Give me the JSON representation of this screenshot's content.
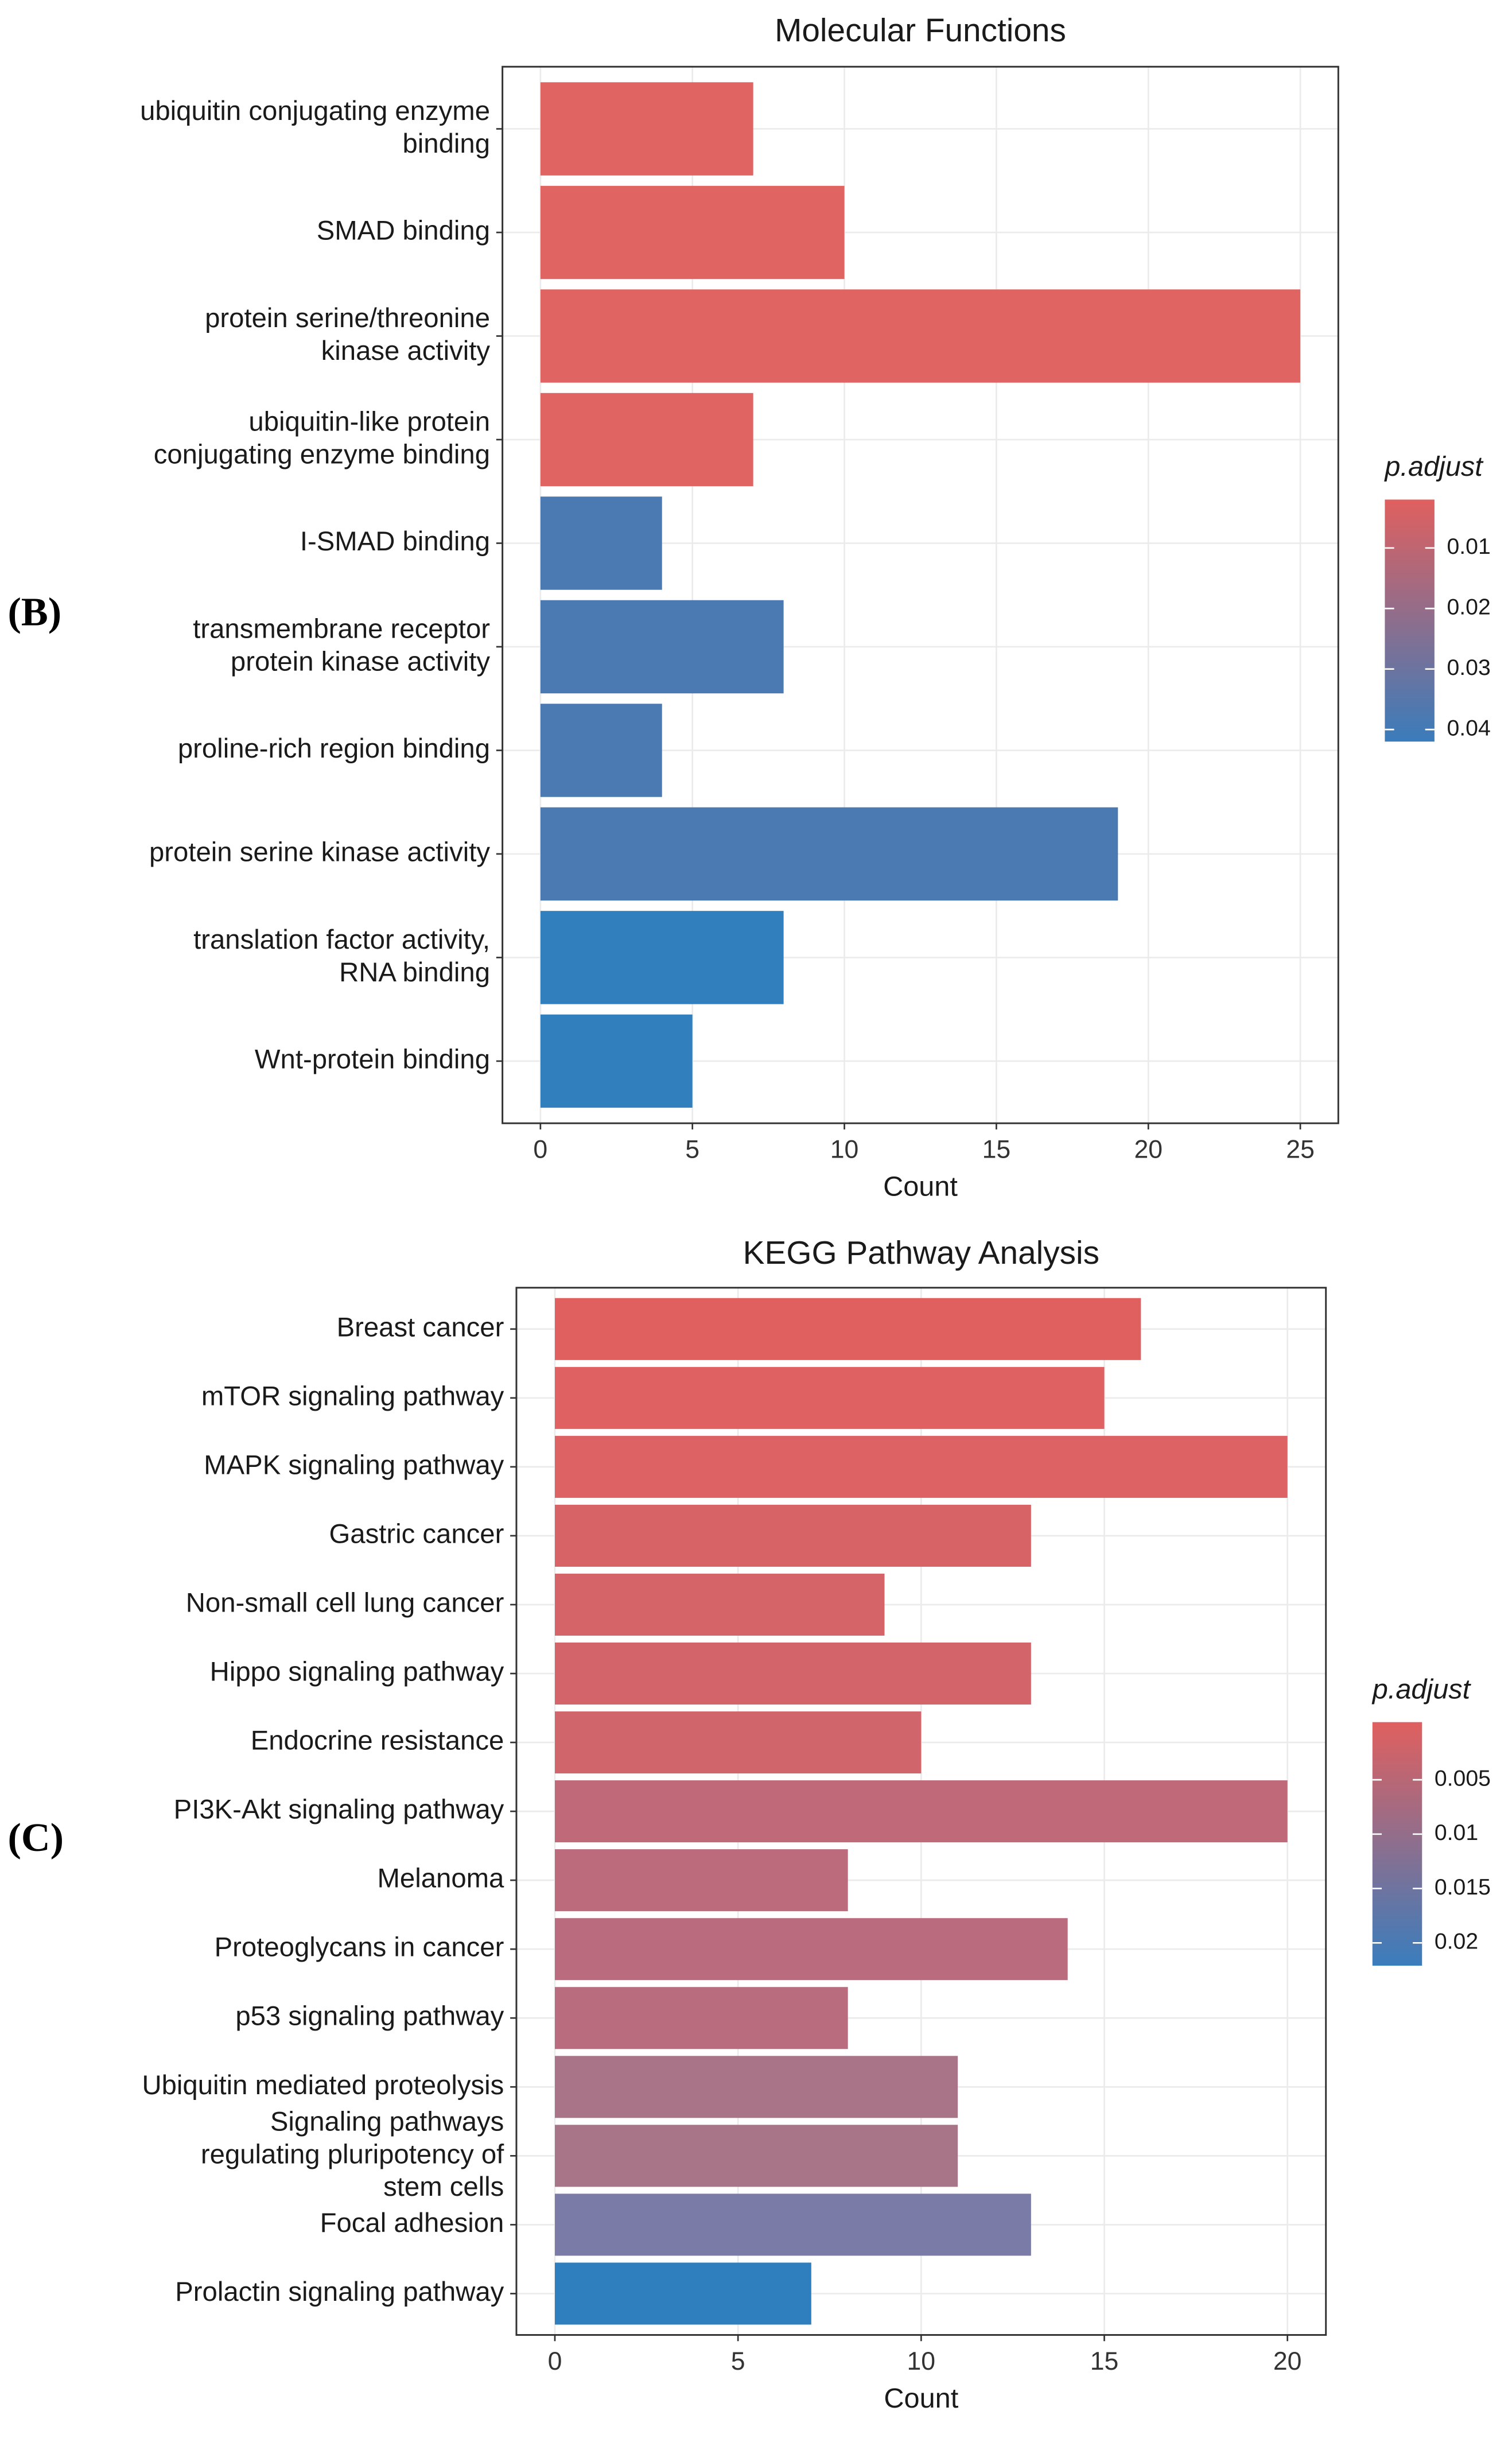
{
  "chart_data": [
    {
      "type": "bar",
      "orientation": "horizontal",
      "panel_label": "(B)",
      "title": "Molecular Functions",
      "x_label": "Count",
      "categories": [
        "ubiquitin conjugating enzyme\nbinding",
        "SMAD binding",
        "protein serine/threonine\nkinase activity",
        "ubiquitin-like protein\nconjugating enzyme binding",
        "I-SMAD binding",
        "transmembrane receptor\nprotein kinase activity",
        "proline-rich region binding",
        "protein serine kinase activity",
        "translation factor activity,\nRNA binding",
        "Wnt-protein binding"
      ],
      "values": [
        7,
        10,
        25,
        7,
        4,
        8,
        4,
        19,
        8,
        5
      ],
      "colors": [
        "#e06462",
        "#e06462",
        "#e06462",
        "#e06462",
        "#4b7ab3",
        "#4b7ab3",
        "#4b7ab3",
        "#4b7ab3",
        "#317fbc",
        "#317fbc"
      ],
      "xlim": [
        -1.25,
        26.25
      ],
      "xticks": [
        0,
        5,
        10,
        15,
        20,
        25
      ],
      "grid": true,
      "colorbar": {
        "title": "p.adjust",
        "lim": [
          0.002,
          0.042
        ],
        "ticks": [
          0.01,
          0.02,
          0.03,
          0.04
        ],
        "colors": [
          "#e0605f",
          "#3a7cbb"
        ]
      }
    },
    {
      "type": "bar",
      "orientation": "horizontal",
      "panel_label": "(C)",
      "title": "KEGG Pathway Analysis",
      "x_label": "Count",
      "categories": [
        "Breast cancer",
        "mTOR signaling pathway",
        "MAPK signaling pathway",
        "Gastric cancer",
        "Non-small cell lung cancer",
        "Hippo signaling pathway",
        "Endocrine resistance",
        "PI3K-Akt signaling pathway",
        "Melanoma",
        "Proteoglycans in cancer",
        "p53 signaling pathway",
        "Ubiquitin mediated proteolysis",
        "Signaling pathways\nregulating pluripotency of\nstem cells",
        "Focal adhesion",
        "Prolactin signaling pathway"
      ],
      "values": [
        16,
        15,
        20,
        13,
        9,
        13,
        10,
        20,
        8,
        14,
        8,
        11,
        11,
        13,
        7
      ],
      "colors": [
        "#e06060",
        "#df6162",
        "#dc6264",
        "#d86367",
        "#d56469",
        "#d3646a",
        "#d0656c",
        "#c06a79",
        "#bc6b7c",
        "#ba6b7d",
        "#b96c7e",
        "#a97487",
        "#a87488",
        "#7b7ba8",
        "#2f7fbe"
      ],
      "xlim": [
        -1.05,
        21.05
      ],
      "xticks": [
        0,
        5,
        10,
        15,
        20
      ],
      "grid": true,
      "colorbar": {
        "title": "p.adjust",
        "lim": [
          -0.0003,
          0.0221
        ],
        "ticks": [
          0.005,
          0.01,
          0.015,
          0.02
        ],
        "colors": [
          "#e0605f",
          "#3a7dbd"
        ]
      }
    }
  ]
}
